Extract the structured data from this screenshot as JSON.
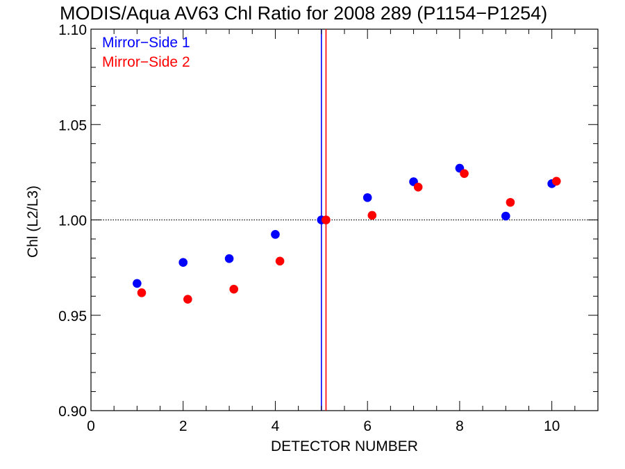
{
  "chart_data": {
    "type": "scatter",
    "title": "MODIS/Aqua AV63 Chl Ratio for 2008 289 (P1154−P1254)",
    "xlabel": "DETECTOR NUMBER",
    "ylabel": "Chl (L2/L3)",
    "xlim": [
      0,
      11
    ],
    "ylim": [
      0.9,
      1.1
    ],
    "xticks": [
      0,
      2,
      4,
      6,
      8,
      10
    ],
    "xtick_labels": [
      "0",
      "2",
      "4",
      "6",
      "8",
      "10"
    ],
    "yticks": [
      0.9,
      0.95,
      1.0,
      1.05,
      1.1
    ],
    "ytick_labels": [
      "0.90",
      "0.95",
      "1.00",
      "1.05",
      "1.10"
    ],
    "reference_line_y": 1.0,
    "vertical_lines": [
      {
        "x": 5.0,
        "color": "#0000ff"
      },
      {
        "x": 5.1,
        "color": "#ff0000"
      }
    ],
    "legend_position": "top-left",
    "series": [
      {
        "name": "Mirror−Side 1",
        "color": "#0000ff",
        "x": [
          1,
          2,
          3,
          4,
          5,
          6,
          7,
          8,
          9,
          10
        ],
        "y": [
          0.9667,
          0.9777,
          0.9797,
          0.9924,
          1.0,
          1.0117,
          1.02,
          1.0271,
          1.002,
          1.019
        ]
      },
      {
        "name": "Mirror−Side 2",
        "color": "#ff0000",
        "x": [
          1.1,
          2.1,
          3.1,
          4.1,
          5.1,
          6.1,
          7.1,
          8.1,
          9.1,
          10.1
        ],
        "y": [
          0.9618,
          0.9584,
          0.9637,
          0.9784,
          1.0,
          1.0024,
          1.0172,
          1.0243,
          1.0092,
          1.0203
        ]
      }
    ]
  }
}
